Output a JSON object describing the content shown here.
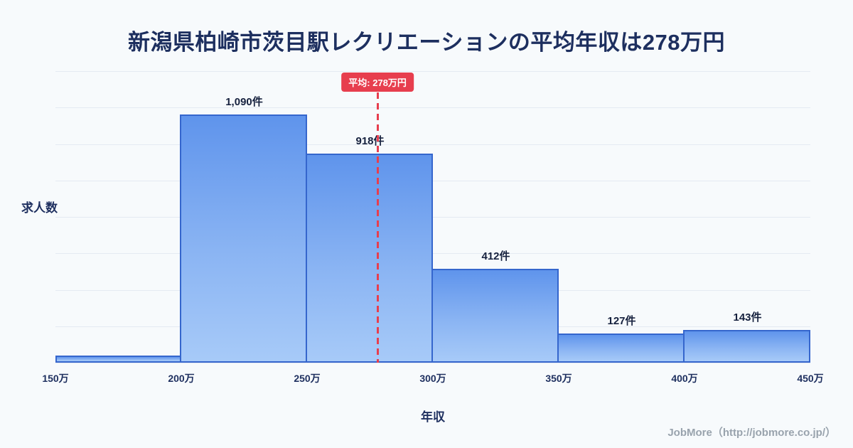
{
  "page": {
    "title": "新潟県柏崎市茨目駅レクリエーションの平均年収は278万円",
    "footer": "JobMore（http://jobmore.co.jp/）"
  },
  "chart_data": {
    "type": "bar",
    "subtype": "histogram",
    "title": "新潟県柏崎市茨目駅レクリエーションの平均年収は278万円",
    "xlabel": "年収",
    "ylabel": "求人数",
    "x_tick_labels": [
      "150万",
      "200万",
      "250万",
      "300万",
      "350万",
      "400万",
      "450万"
    ],
    "x_range": [
      150,
      450
    ],
    "ylim": [
      0,
      1280
    ],
    "grid": "horizontal",
    "legend": "none",
    "bins": [
      {
        "range_start": 150,
        "range_end": 200,
        "value": 30,
        "label": ""
      },
      {
        "range_start": 200,
        "range_end": 250,
        "value": 1090,
        "label": "1,090件"
      },
      {
        "range_start": 250,
        "range_end": 300,
        "value": 918,
        "label": "918件"
      },
      {
        "range_start": 300,
        "range_end": 350,
        "value": 412,
        "label": "412件"
      },
      {
        "range_start": 350,
        "range_end": 400,
        "value": 127,
        "label": "127件"
      },
      {
        "range_start": 400,
        "range_end": 450,
        "value": 143,
        "label": "143件"
      }
    ],
    "average": {
      "value": 278,
      "label": "平均: 278万円"
    },
    "colors": {
      "background": "#f7fafc",
      "title_text": "#1d2f5f",
      "bar_fill_top": "#5f94ec",
      "bar_fill_bottom": "#a7caf8",
      "bar_border": "#3566cd",
      "average_accent": "#e73e4e",
      "gridline": "#e4eaf2",
      "axis_text": "#1e2f5f",
      "bar_label_text": "#16213e",
      "footer_text": "#99a3ad"
    }
  }
}
